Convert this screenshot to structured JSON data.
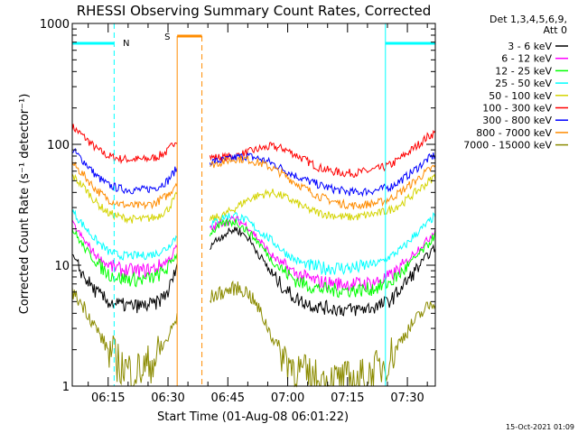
{
  "chart_data": {
    "type": "line",
    "title": "RHESSI Observing Summary Count Rates, Corrected",
    "xlabel": "Start Time (01-Aug-08 06:01:22)",
    "ylabel": "Corrected Count Rate (s⁻¹ detector⁻¹)",
    "yscale": "log",
    "ylim": [
      1,
      1000
    ],
    "xlim_minutes": [
      6.0,
      97.0
    ],
    "y_ticks": [
      {
        "value": 1,
        "label": "1"
      },
      {
        "value": 10,
        "label": "10"
      },
      {
        "value": 100,
        "label": "100"
      },
      {
        "value": 1000,
        "label": "1000"
      }
    ],
    "x_ticks": [
      {
        "minute": 15,
        "label": "06:15"
      },
      {
        "minute": 30,
        "label": "06:30"
      },
      {
        "minute": 45,
        "label": "06:45"
      },
      {
        "minute": 60,
        "label": "07:00"
      },
      {
        "minute": 75,
        "label": "07:15"
      },
      {
        "minute": 90,
        "label": "07:30"
      }
    ],
    "legend": {
      "position": "right",
      "header": [
        "Det 1,3,4,5,6,9,",
        "Att 0"
      ],
      "entries": [
        {
          "label": "3 - 6 keV",
          "color": "#000000"
        },
        {
          "label": "6 - 12 keV",
          "color": "#ff00ff"
        },
        {
          "label": "12 - 25 keV",
          "color": "#00ff00"
        },
        {
          "label": "25 - 50 keV",
          "color": "#00ffff"
        },
        {
          "label": "50 - 100 keV",
          "color": "#d4d400"
        },
        {
          "label": "100 - 300 keV",
          "color": "#ff0000"
        },
        {
          "label": "300 - 800 keV",
          "color": "#0000ff"
        },
        {
          "label": "800 - 7000 keV",
          "color": "#ff8c00"
        },
        {
          "label": "7000 - 15000 keV",
          "color": "#8b8b00"
        }
      ]
    },
    "gaps": [
      {
        "start": 32.3,
        "end": 40.5
      }
    ],
    "markers": [
      {
        "label": "N",
        "color": "#00ffff",
        "start": 6.0,
        "end": 16.5
      },
      {
        "label": "S",
        "color": "#ff8c00",
        "start": 32.3,
        "end": 38.5
      },
      {
        "label": "",
        "color": "#00ffff",
        "start": 84.5,
        "end": 97.0
      }
    ],
    "series": [
      {
        "color": "#ff0000",
        "x": [
          6,
          9,
          12,
          15,
          18,
          21,
          24,
          27,
          30,
          31,
          32,
          41,
          44,
          47,
          50,
          53,
          56,
          59,
          62,
          65,
          68,
          71,
          74,
          77,
          80,
          83,
          86,
          89,
          92,
          95,
          97
        ],
        "values": [
          140,
          115,
          92,
          80,
          76,
          75,
          75,
          78,
          88,
          98,
          110,
          78,
          78,
          80,
          86,
          92,
          96,
          92,
          82,
          72,
          64,
          60,
          58,
          58,
          60,
          63,
          68,
          80,
          95,
          115,
          125
        ]
      },
      {
        "color": "#0000ff",
        "x": [
          6,
          9,
          12,
          15,
          18,
          21,
          24,
          27,
          30,
          31,
          32,
          41,
          44,
          47,
          50,
          53,
          56,
          59,
          62,
          65,
          68,
          71,
          74,
          77,
          80,
          83,
          86,
          89,
          92,
          95,
          97
        ],
        "values": [
          90,
          72,
          55,
          46,
          43,
          42,
          42,
          44,
          50,
          56,
          62,
          72,
          74,
          78,
          80,
          76,
          70,
          62,
          55,
          50,
          46,
          43,
          41,
          40,
          41,
          42,
          45,
          52,
          62,
          75,
          82
        ]
      },
      {
        "color": "#ff8c00",
        "x": [
          6,
          9,
          12,
          15,
          18,
          21,
          24,
          27,
          30,
          31,
          32,
          41,
          44,
          47,
          50,
          53,
          56,
          59,
          62,
          65,
          68,
          71,
          74,
          77,
          80,
          83,
          86,
          89,
          92,
          95,
          97
        ],
        "values": [
          70,
          55,
          42,
          35,
          32,
          31,
          31,
          33,
          38,
          42,
          48,
          68,
          72,
          76,
          75,
          70,
          64,
          56,
          48,
          42,
          37,
          34,
          32,
          31,
          32,
          33,
          36,
          42,
          50,
          60,
          66
        ]
      },
      {
        "color": "#d4d400",
        "x": [
          6,
          9,
          12,
          15,
          18,
          21,
          24,
          27,
          30,
          31,
          32,
          41,
          44,
          47,
          50,
          53,
          56,
          59,
          62,
          65,
          68,
          71,
          74,
          77,
          80,
          83,
          86,
          89,
          92,
          95,
          97
        ],
        "values": [
          55,
          44,
          33,
          27,
          25,
          24,
          24,
          25,
          29,
          33,
          37,
          24,
          26,
          30,
          35,
          38,
          40,
          37,
          33,
          29,
          27,
          26,
          25,
          25,
          26,
          27,
          29,
          33,
          40,
          48,
          55
        ]
      },
      {
        "color": "#00ffff",
        "x": [
          6,
          9,
          12,
          15,
          18,
          21,
          24,
          27,
          30,
          31,
          32,
          41,
          44,
          47,
          50,
          53,
          56,
          59,
          62,
          65,
          68,
          71,
          74,
          77,
          80,
          83,
          86,
          89,
          92,
          95,
          97
        ],
        "values": [
          28,
          21,
          16,
          13,
          12,
          12,
          12,
          12.5,
          14,
          16,
          17,
          22,
          25,
          26,
          23,
          19,
          16,
          13,
          11,
          10,
          9.5,
          9.5,
          9.5,
          9.5,
          10,
          10.5,
          12,
          14,
          18,
          22,
          26
        ]
      },
      {
        "color": "#ff00ff",
        "x": [
          6,
          9,
          12,
          15,
          18,
          21,
          24,
          27,
          30,
          31,
          32,
          41,
          44,
          47,
          50,
          53,
          56,
          59,
          62,
          65,
          68,
          71,
          74,
          77,
          80,
          83,
          86,
          89,
          92,
          95,
          97
        ],
        "values": [
          22,
          16,
          12,
          10,
          9.2,
          9,
          9,
          9.5,
          11,
          12,
          14,
          20,
          23,
          24,
          21,
          16,
          12,
          10,
          8.5,
          7.8,
          7.3,
          7.1,
          7,
          7,
          7.1,
          7.4,
          8.2,
          10,
          13,
          16,
          20
        ]
      },
      {
        "color": "#00ff00",
        "x": [
          6,
          9,
          12,
          15,
          18,
          21,
          24,
          27,
          30,
          31,
          32,
          41,
          44,
          47,
          50,
          53,
          56,
          59,
          62,
          65,
          68,
          71,
          74,
          77,
          80,
          83,
          86,
          89,
          92,
          95,
          97
        ],
        "values": [
          20,
          14,
          10.5,
          8.5,
          7.8,
          7.6,
          7.6,
          8,
          9.5,
          11,
          12,
          19,
          22,
          23,
          19,
          15,
          11,
          9,
          7.5,
          6.8,
          6.4,
          6.2,
          6.2,
          6.2,
          6.3,
          6.6,
          7.3,
          9,
          11.5,
          14.5,
          18
        ]
      },
      {
        "color": "#000000",
        "x": [
          6,
          9,
          12,
          15,
          18,
          21,
          24,
          27,
          30,
          31,
          32,
          41,
          44,
          47,
          50,
          53,
          56,
          59,
          62,
          65,
          68,
          71,
          74,
          77,
          80,
          83,
          86,
          89,
          92,
          95,
          97
        ],
        "values": [
          12,
          8,
          6,
          5,
          4.7,
          4.6,
          4.6,
          4.8,
          6,
          7.5,
          9,
          15,
          18,
          20,
          17,
          12,
          8.5,
          6.5,
          5.3,
          4.8,
          4.5,
          4.4,
          4.3,
          4.3,
          4.4,
          4.6,
          5.2,
          6.8,
          9,
          12,
          14
        ]
      },
      {
        "color": "#8b8b00",
        "x": [
          6,
          9,
          12,
          15,
          18,
          21,
          24,
          27,
          30,
          31,
          32,
          41,
          44,
          47,
          50,
          53,
          56,
          59,
          62,
          65,
          68,
          71,
          74,
          77,
          80,
          83,
          86,
          89,
          92,
          95,
          97
        ],
        "values": [
          6,
          4.5,
          3,
          2,
          1.5,
          1.3,
          1.4,
          1.7,
          2.5,
          3,
          3.5,
          5.5,
          6,
          6.5,
          6,
          4.2,
          2.6,
          1.8,
          1.4,
          1.2,
          1.1,
          1.1,
          1.1,
          1.1,
          1.2,
          1.4,
          1.8,
          2.6,
          3.5,
          4.5,
          5
        ]
      }
    ]
  },
  "footer": {
    "timestamp": "15-Oct-2021 01:09"
  }
}
